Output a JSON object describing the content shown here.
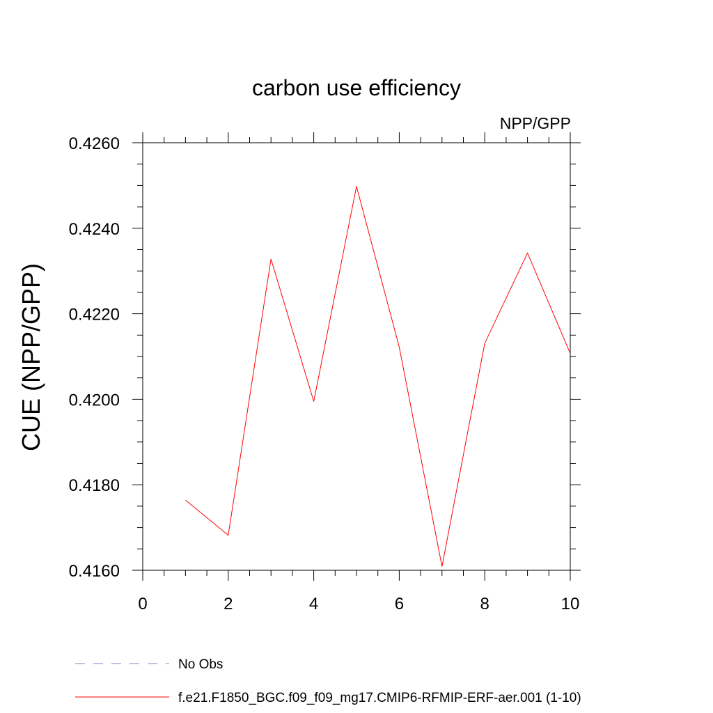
{
  "chart_data": {
    "type": "line",
    "title": "carbon use efficiency",
    "subtitle": "NPP/GPP",
    "xlabel": "",
    "ylabel": "CUE  (NPP/GPP)",
    "xlim": [
      0,
      10
    ],
    "ylim": [
      0.416,
      0.426
    ],
    "x_ticks": [
      0,
      2,
      4,
      6,
      8,
      10
    ],
    "x_tick_labels": [
      "0",
      "2",
      "4",
      "6",
      "8",
      "10"
    ],
    "y_ticks": [
      0.416,
      0.418,
      0.42,
      0.422,
      0.424,
      0.426
    ],
    "y_tick_labels": [
      "0.4160",
      "0.4180",
      "0.4200",
      "0.4220",
      "0.4240",
      "0.4260"
    ],
    "grid": false,
    "legend_position": "bottom",
    "series": [
      {
        "name": "f.e21.F1850_BGC.f09_f09_mg17.CMIP6-RFMIP-ERF-aer.001 (1-10)",
        "color": "#ff0000",
        "style": "solid",
        "x": [
          1,
          2,
          3,
          4,
          5,
          6,
          7,
          8,
          9,
          10
        ],
        "y": [
          0.41764,
          0.41682,
          0.42328,
          0.41995,
          0.42498,
          0.42122,
          0.41609,
          0.42131,
          0.42342,
          0.42107
        ]
      }
    ],
    "legend": [
      {
        "label": "No Obs",
        "color": "#8080c0",
        "style": "dashed"
      },
      {
        "label": "f.e21.F1850_BGC.f09_f09_mg17.CMIP6-RFMIP-ERF-aer.001 (1-10)",
        "color": "#ff0000",
        "style": "solid"
      }
    ]
  }
}
